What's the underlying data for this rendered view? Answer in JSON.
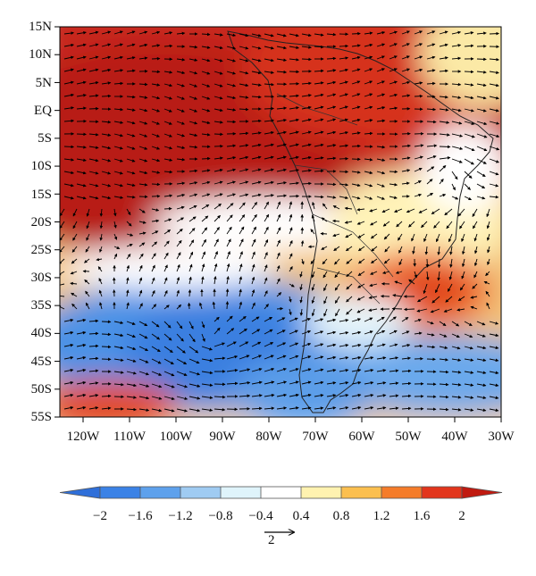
{
  "map": {
    "region": "tropical and southern South America with adjacent Pacific and Atlantic oceans",
    "field": "shaded anomaly field with overlaid wind vectors",
    "lat_labels": [
      "15N",
      "10N",
      "5N",
      "EQ",
      "5S",
      "10S",
      "15S",
      "20S",
      "25S",
      "30S",
      "35S",
      "40S",
      "45S",
      "50S",
      "55S"
    ],
    "lon_labels": [
      "120W",
      "110W",
      "100W",
      "90W",
      "80W",
      "70W",
      "60W",
      "50W",
      "40W",
      "30W"
    ],
    "lon_range": [
      -125,
      -30
    ],
    "lat_range": [
      -55,
      15
    ]
  },
  "colorbar": {
    "ticks": [
      "−2",
      "−1.6",
      "−1.2",
      "−0.8",
      "−0.4",
      "0.4",
      "0.8",
      "1.2",
      "1.6",
      "2"
    ],
    "colors": [
      "#2f6fd9",
      "#3b82e6",
      "#5ea1ec",
      "#9fcbf2",
      "#dff4fb",
      "#ffffff",
      "#fff2b0",
      "#fbbf4f",
      "#f57c2a",
      "#e2351c",
      "#c01a10"
    ],
    "orientation": "horizontal",
    "extend": "both"
  },
  "reference_vector": {
    "label": "2"
  }
}
